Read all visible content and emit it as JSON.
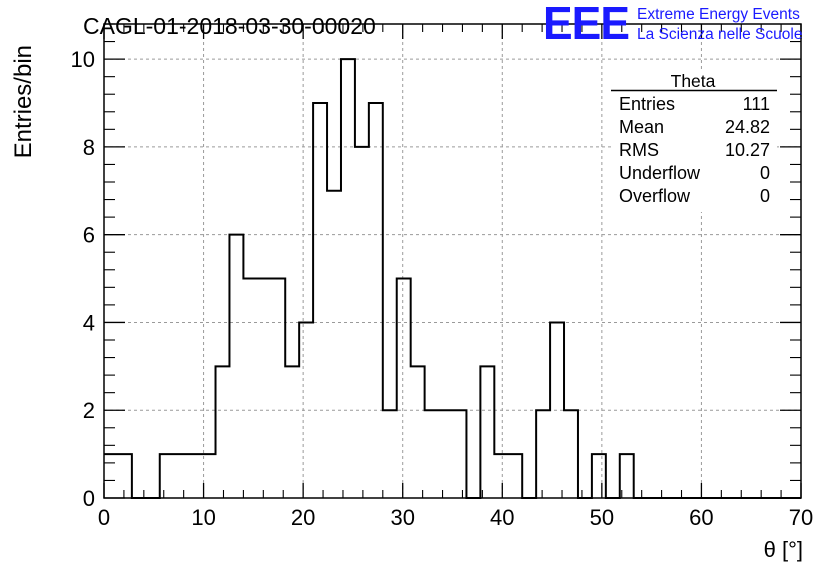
{
  "header": {
    "run_title": "CAGL-01-2018-03-30-00020",
    "logo_text": "EEE",
    "org_line1": "Extreme Energy Events",
    "org_line2": "La Scienza nelle Scuole"
  },
  "stats_box": {
    "title": "Theta",
    "rows": [
      {
        "label": "Entries",
        "value": "111"
      },
      {
        "label": "Mean",
        "value": "24.82"
      },
      {
        "label": "RMS",
        "value": "10.27"
      },
      {
        "label": "Underflow",
        "value": "0"
      },
      {
        "label": "Overflow",
        "value": "0"
      }
    ]
  },
  "colors": {
    "logo_blue": "#1a1aff",
    "grid": "#9a9a9a",
    "line": "#000000"
  },
  "chart_data": {
    "type": "bar",
    "histogram": "step",
    "title": "",
    "xlabel": "θ [°]",
    "ylabel": "Entries/bin",
    "xlim": [
      0,
      70
    ],
    "ylim": [
      0,
      10.8
    ],
    "grid": true,
    "x_ticks": [
      0,
      10,
      20,
      30,
      40,
      50,
      60,
      70
    ],
    "y_ticks": [
      0,
      2,
      4,
      6,
      8,
      10
    ],
    "bin_width": 1.4,
    "bin_edges_start": 0,
    "values": [
      1,
      1,
      0,
      0,
      1,
      1,
      1,
      1,
      3,
      6,
      5,
      5,
      5,
      3,
      4,
      9,
      7,
      10,
      8,
      9,
      2,
      5,
      3,
      2,
      2,
      2,
      0,
      3,
      1,
      1,
      0,
      2,
      4,
      2,
      0,
      1,
      0,
      1,
      0,
      0,
      0,
      0,
      0,
      0,
      0,
      0,
      0,
      0,
      0,
      0
    ]
  }
}
